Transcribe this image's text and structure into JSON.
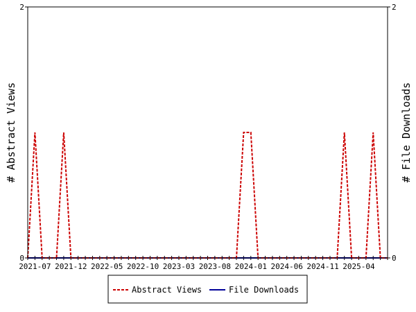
{
  "chart_data": {
    "type": "line",
    "x": [
      "2021-06",
      "2021-07",
      "2021-08",
      "2021-09",
      "2021-10",
      "2021-11",
      "2021-12",
      "2022-01",
      "2022-02",
      "2022-03",
      "2022-04",
      "2022-05",
      "2022-06",
      "2022-07",
      "2022-08",
      "2022-09",
      "2022-10",
      "2022-11",
      "2022-12",
      "2023-01",
      "2023-02",
      "2023-03",
      "2023-04",
      "2023-05",
      "2023-06",
      "2023-07",
      "2023-08",
      "2023-09",
      "2023-10",
      "2023-11",
      "2023-12",
      "2024-01",
      "2024-02",
      "2024-03",
      "2024-04",
      "2024-05",
      "2024-06",
      "2024-07",
      "2024-08",
      "2024-09",
      "2024-10",
      "2024-11",
      "2024-12",
      "2025-01",
      "2025-02",
      "2025-03",
      "2025-04",
      "2025-05",
      "2025-06",
      "2025-07",
      "2025-08"
    ],
    "tick_labels": [
      "2021-07",
      "2021-12",
      "2022-05",
      "2022-10",
      "2023-03",
      "2023-08",
      "2024-01",
      "2024-06",
      "2024-11",
      "2025-04"
    ],
    "series": [
      {
        "name": "Abstract Views",
        "color": "#cc0000",
        "style": "dashed",
        "values": [
          0,
          1,
          0,
          0,
          0,
          1,
          0,
          0,
          0,
          0,
          0,
          0,
          0,
          0,
          0,
          0,
          0,
          0,
          0,
          0,
          0,
          0,
          0,
          0,
          0,
          0,
          0,
          0,
          0,
          0,
          1,
          1,
          0,
          0,
          0,
          0,
          0,
          0,
          0,
          0,
          0,
          0,
          0,
          0,
          1,
          0,
          0,
          0,
          1,
          0,
          0
        ]
      },
      {
        "name": "File Downloads",
        "color": "#000099",
        "style": "solid",
        "values": [
          0,
          0,
          0,
          0,
          0,
          0,
          0,
          0,
          0,
          0,
          0,
          0,
          0,
          0,
          0,
          0,
          0,
          0,
          0,
          0,
          0,
          0,
          0,
          0,
          0,
          0,
          0,
          0,
          0,
          0,
          0,
          0,
          0,
          0,
          0,
          0,
          0,
          0,
          0,
          0,
          0,
          0,
          0,
          0,
          0,
          0,
          0,
          0,
          0,
          0,
          0
        ]
      }
    ],
    "ylabel_left": "# Abstract Views",
    "ylabel_right": "# File Downloads",
    "ylim": [
      0,
      2
    ],
    "yticks": [
      "0",
      "2"
    ],
    "grid": false,
    "legend_position": "bottom"
  }
}
